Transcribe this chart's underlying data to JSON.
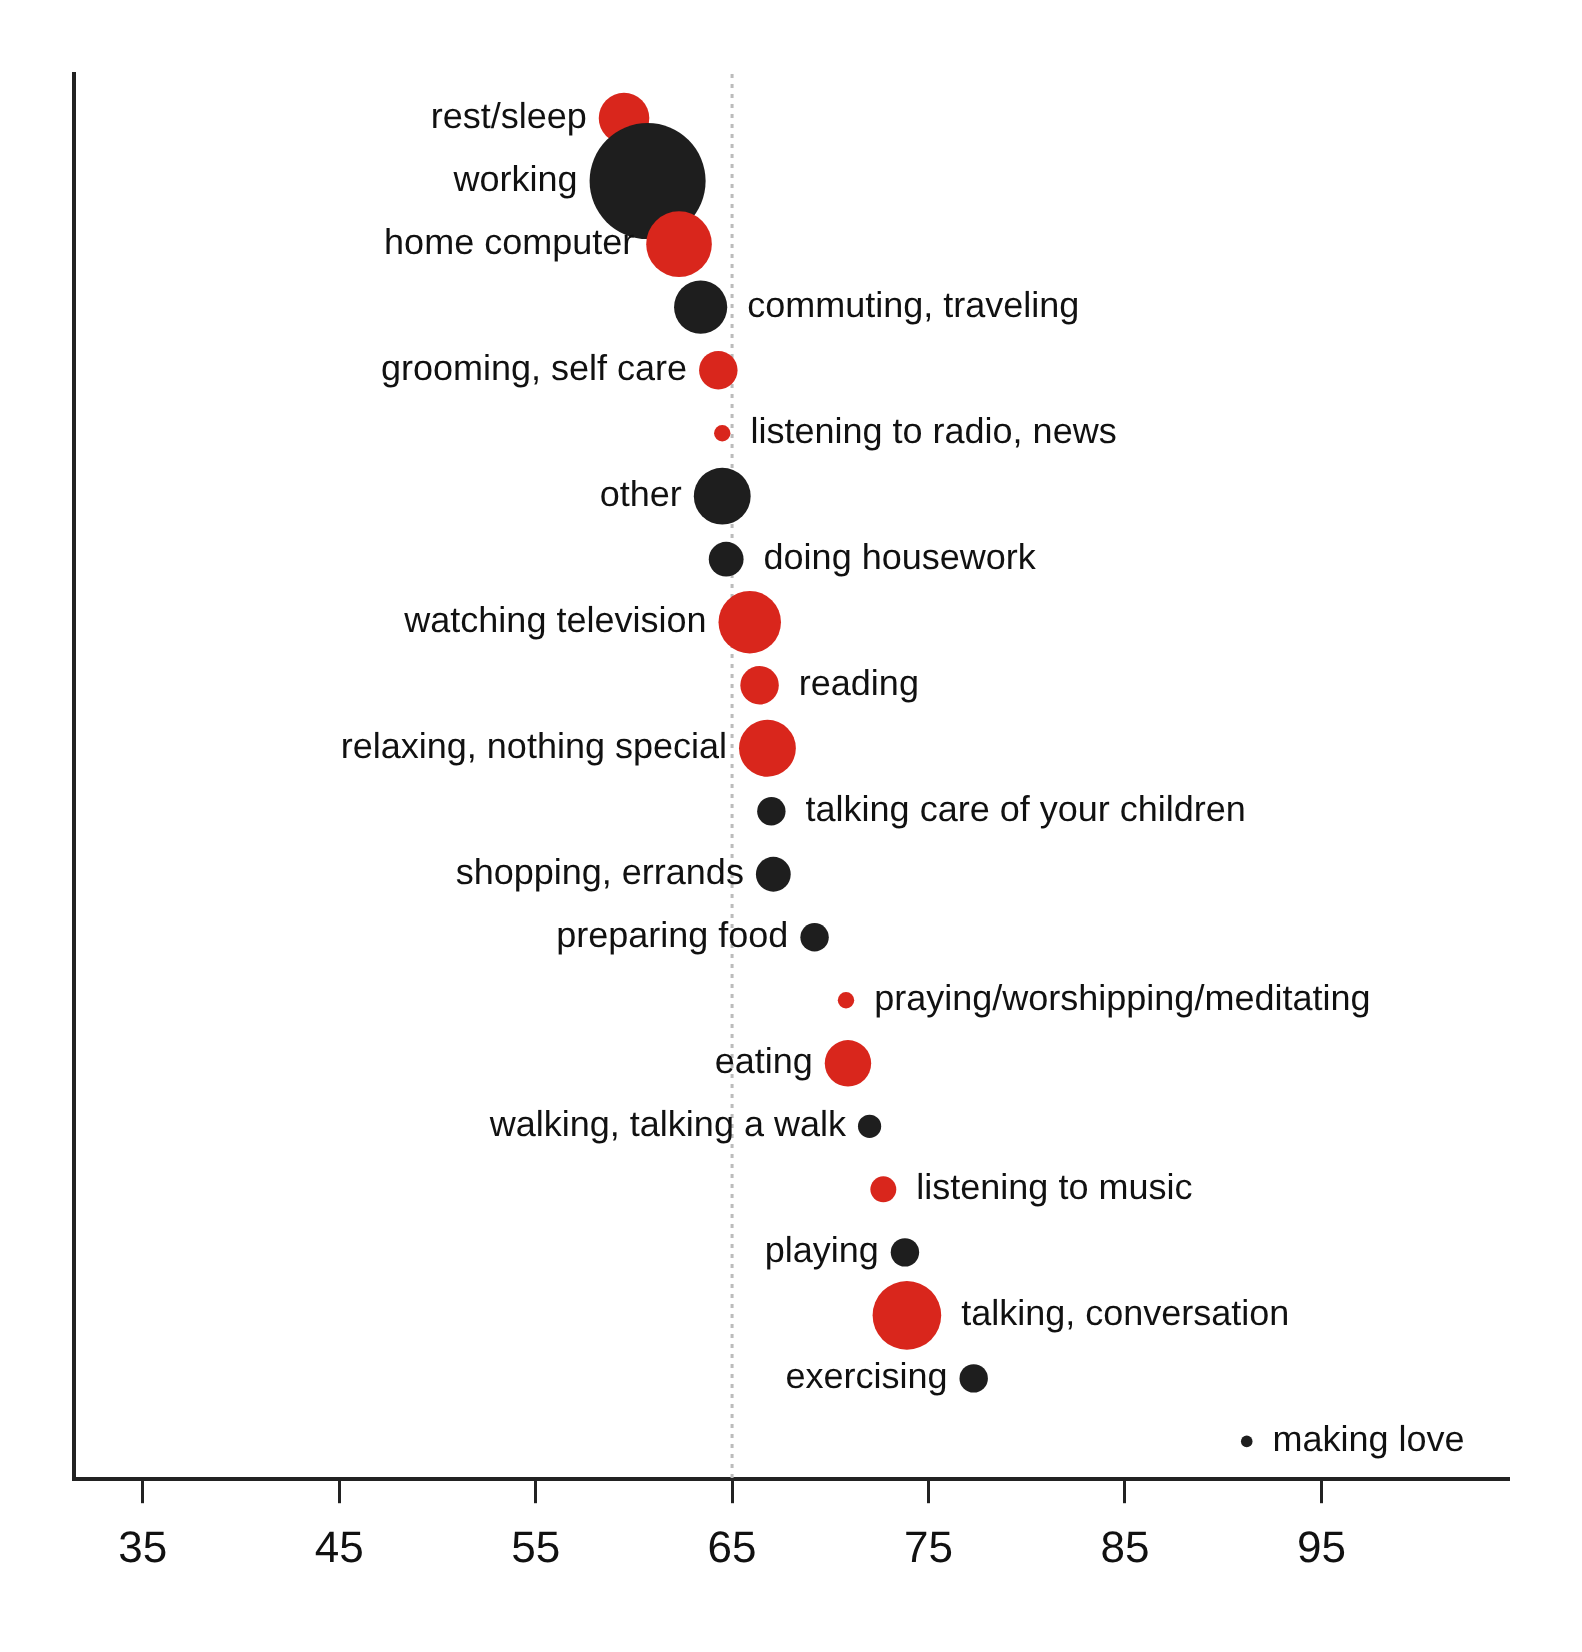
{
  "chart_data": {
    "type": "bubble",
    "orientation": "horizontal",
    "categories": [
      "rest/sleep",
      "working",
      "home computer",
      "commuting, traveling",
      "grooming, self care",
      "listening to radio, news",
      "other",
      "doing housework",
      "watching television",
      "reading",
      "relaxing, nothing special",
      "talking care of your children",
      "shopping, errands",
      "preparing food",
      "praying/worshipping/meditating",
      "eating",
      "walking, talking a walk",
      "listening to music",
      "playing",
      "talking, conversation",
      "exercising",
      "making love"
    ],
    "values": [
      59.5,
      60.7,
      62.3,
      63.4,
      64.3,
      64.5,
      64.5,
      64.7,
      65.9,
      66.4,
      66.8,
      67.0,
      67.1,
      69.2,
      70.8,
      70.9,
      72.0,
      72.7,
      73.8,
      73.9,
      77.3,
      91.2
    ],
    "sizes": [
      0.19,
      1,
      0.32,
      0.21,
      0.11,
      0.02,
      0.24,
      0.09,
      0.29,
      0.11,
      0.24,
      0.06,
      0.09,
      0.06,
      0.02,
      0.16,
      0.04,
      0.05,
      0.06,
      0.35,
      0.06,
      0.01
    ],
    "colors": [
      "#d9261c",
      "#1e1e1e",
      "#d9261c",
      "#1e1e1e",
      "#d9261c",
      "#d9261c",
      "#1e1e1e",
      "#1e1e1e",
      "#d9261c",
      "#d9261c",
      "#d9261c",
      "#1e1e1e",
      "#1e1e1e",
      "#1e1e1e",
      "#d9261c",
      "#d9261c",
      "#1e1e1e",
      "#d9261c",
      "#1e1e1e",
      "#d9261c",
      "#1e1e1e",
      "#1e1e1e"
    ],
    "xlim": [
      31.5,
      104.5
    ],
    "xticks": [
      35,
      45,
      55,
      65,
      75,
      85,
      95
    ],
    "ref_lines": [
      {
        "axis": "x",
        "value": 65,
        "color": "#bbbbbb",
        "line_style": "dotted"
      }
    ],
    "tick_labels": "x"
  }
}
